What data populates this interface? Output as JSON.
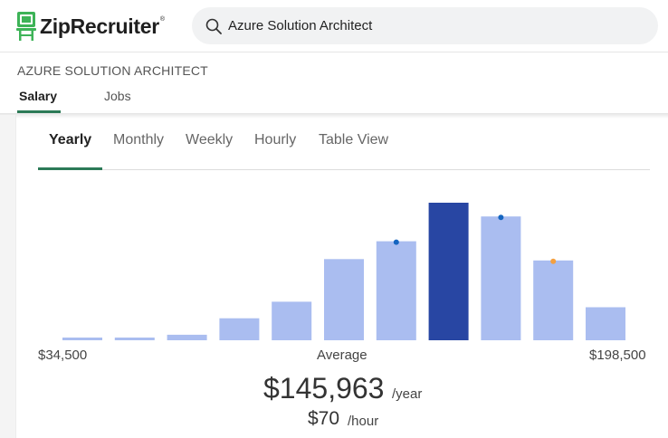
{
  "brand": {
    "name": "ZipRecruiter",
    "registered": "®",
    "logo_color": "#3db357"
  },
  "search": {
    "value": "Azure Solution Architect",
    "icon": "search-icon"
  },
  "page": {
    "job_title": "AZURE SOLUTION ARCHITECT",
    "tabs": [
      {
        "label": "Salary",
        "active": true
      },
      {
        "label": "Jobs",
        "active": false
      }
    ],
    "accent": "#2c7a57"
  },
  "period_tabs": [
    {
      "label": "Yearly",
      "active": true
    },
    {
      "label": "Monthly",
      "active": false
    },
    {
      "label": "Weekly",
      "active": false
    },
    {
      "label": "Hourly",
      "active": false
    },
    {
      "label": "Table View",
      "active": false
    }
  ],
  "chart_data": {
    "type": "bar",
    "bar_heights_relative": [
      2,
      2,
      4,
      16,
      28,
      59,
      72,
      100,
      90,
      58,
      24
    ],
    "highlight_index": 7,
    "markers": [
      {
        "bar_index": 6,
        "color": "#1565c0"
      },
      {
        "bar_index": 8,
        "color": "#1565c0"
      },
      {
        "bar_index": 9,
        "color": "#f4a040"
      }
    ],
    "bar_color": "#aabdf0",
    "highlight_color": "#2846a3",
    "axis_min_label": "$34,500",
    "axis_mid_label": "Average",
    "axis_max_label": "$198,500"
  },
  "average": {
    "yearly_value": "$145,963",
    "yearly_unit": "/year",
    "hourly_value": "$70",
    "hourly_unit": "/hour"
  }
}
